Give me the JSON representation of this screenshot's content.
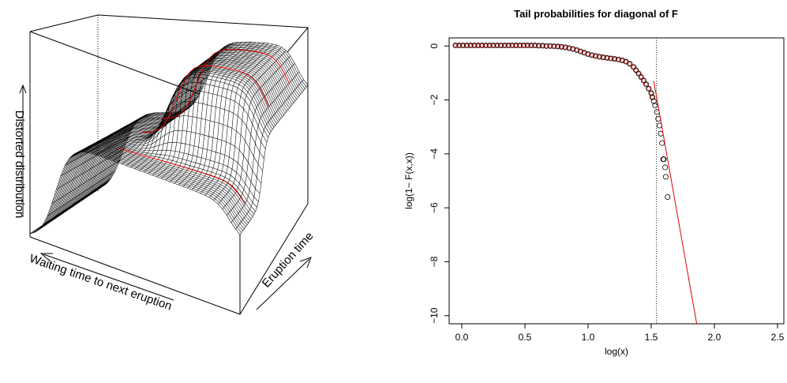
{
  "chart_data": [
    {
      "type": "surface",
      "xlabel": "Waiting time to next eruption",
      "ylabel": "Eruption time",
      "zlabel": "Distorted distribution",
      "colors": {
        "mesh": "#000000",
        "highlight": "#e00000",
        "background": "#ffffff"
      }
    },
    {
      "type": "scatter",
      "title": "Tail probabilities for diagonal of F",
      "xlabel": "log(x)",
      "ylabel": "log(1− F(x,x))",
      "xlim": [
        -0.1,
        2.55
      ],
      "ylim": [
        -10.3,
        0.3
      ],
      "xticks": [
        "0.0",
        "0.5",
        "1.0",
        "1.5",
        "2.0",
        "2.5"
      ],
      "xtick_values": [
        0,
        0.5,
        1.0,
        1.5,
        2.0,
        2.5
      ],
      "yticks": [
        "0",
        "−2",
        "−4",
        "−6",
        "−8",
        "−10"
      ],
      "ytick_values": [
        0,
        -2,
        -4,
        -6,
        -8,
        -10
      ],
      "vline_x": 1.54,
      "tail_line": {
        "x": [
          1.52,
          1.86
        ],
        "y": [
          -1.3,
          -10.3
        ]
      },
      "points": [
        [
          -0.05,
          0.02
        ],
        [
          -0.02,
          0.02
        ],
        [
          0.01,
          0.02
        ],
        [
          0.04,
          0.02
        ],
        [
          0.07,
          0.02
        ],
        [
          0.1,
          0.02
        ],
        [
          0.13,
          0.02
        ],
        [
          0.16,
          0.02
        ],
        [
          0.19,
          0.02
        ],
        [
          0.22,
          0.02
        ],
        [
          0.25,
          0.02
        ],
        [
          0.28,
          0.02
        ],
        [
          0.31,
          0.02
        ],
        [
          0.34,
          0.02
        ],
        [
          0.37,
          0.02
        ],
        [
          0.4,
          0.02
        ],
        [
          0.43,
          0.02
        ],
        [
          0.46,
          0.02
        ],
        [
          0.49,
          0.02
        ],
        [
          0.52,
          0.02
        ],
        [
          0.55,
          0.02
        ],
        [
          0.58,
          0.02
        ],
        [
          0.61,
          0.01
        ],
        [
          0.64,
          0.01
        ],
        [
          0.67,
          0.0
        ],
        [
          0.7,
          0.0
        ],
        [
          0.73,
          -0.01
        ],
        [
          0.76,
          -0.02
        ],
        [
          0.79,
          -0.03
        ],
        [
          0.82,
          -0.05
        ],
        [
          0.85,
          -0.08
        ],
        [
          0.88,
          -0.11
        ],
        [
          0.91,
          -0.15
        ],
        [
          0.94,
          -0.2
        ],
        [
          0.97,
          -0.25
        ],
        [
          1.0,
          -0.3
        ],
        [
          1.03,
          -0.34
        ],
        [
          1.06,
          -0.37
        ],
        [
          1.09,
          -0.4
        ],
        [
          1.12,
          -0.42
        ],
        [
          1.15,
          -0.44
        ],
        [
          1.18,
          -0.46
        ],
        [
          1.21,
          -0.48
        ],
        [
          1.24,
          -0.5
        ],
        [
          1.27,
          -0.53
        ],
        [
          1.3,
          -0.58
        ],
        [
          1.33,
          -0.66
        ],
        [
          1.36,
          -0.78
        ],
        [
          1.38,
          -0.9
        ],
        [
          1.4,
          -1.02
        ],
        [
          1.42,
          -1.15
        ],
        [
          1.44,
          -1.28
        ],
        [
          1.46,
          -1.42
        ],
        [
          1.48,
          -1.58
        ],
        [
          1.5,
          -1.75
        ],
        [
          1.51,
          -1.9
        ],
        [
          1.52,
          -2.05
        ],
        [
          1.53,
          -2.2
        ],
        [
          1.545,
          -2.45
        ],
        [
          1.555,
          -2.7
        ],
        [
          1.565,
          -2.95
        ],
        [
          1.575,
          -3.25
        ],
        [
          1.585,
          -3.6
        ],
        [
          1.595,
          -4.2
        ],
        [
          1.6,
          -4.2
        ],
        [
          1.61,
          -4.5
        ],
        [
          1.615,
          -4.85
        ],
        [
          1.63,
          -5.6
        ]
      ]
    }
  ]
}
